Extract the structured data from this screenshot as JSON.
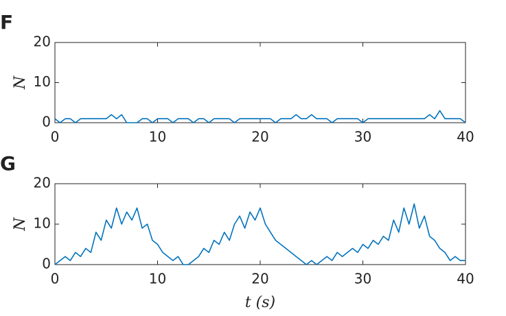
{
  "chart_data": [
    {
      "type": "line",
      "title": "F",
      "ylabel": "N",
      "color": "#0072bd",
      "xlim": [
        0,
        40
      ],
      "ylim": [
        0,
        20
      ],
      "xticks": [
        0,
        10,
        20,
        30,
        40
      ],
      "yticks": [
        0,
        10,
        20
      ],
      "x": [
        0,
        0.5,
        1,
        1.5,
        2,
        2.5,
        3,
        3.5,
        4,
        4.5,
        5,
        5.5,
        6,
        6.5,
        7,
        7.5,
        8,
        8.5,
        9,
        9.5,
        10,
        10.5,
        11,
        11.5,
        12,
        12.5,
        13,
        13.5,
        14,
        14.5,
        15,
        15.5,
        16,
        16.5,
        17,
        17.5,
        18,
        18.5,
        19,
        19.5,
        20,
        20.5,
        21,
        21.5,
        22,
        22.5,
        23,
        23.5,
        24,
        24.5,
        25,
        25.5,
        26,
        26.5,
        27,
        27.5,
        28,
        28.5,
        29,
        29.5,
        30,
        30.5,
        31,
        31.5,
        32,
        32.5,
        33,
        33.5,
        34,
        34.5,
        35,
        35.5,
        36,
        36.5,
        37,
        37.5,
        38,
        38.5,
        39,
        39.5,
        40
      ],
      "values": [
        1,
        0,
        1,
        1,
        0,
        1,
        1,
        1,
        1,
        1,
        1,
        2,
        1,
        2,
        0,
        0,
        0,
        1,
        1,
        0,
        1,
        1,
        1,
        0,
        1,
        1,
        1,
        0,
        1,
        1,
        0,
        1,
        1,
        1,
        1,
        0,
        1,
        1,
        1,
        1,
        1,
        1,
        1,
        0,
        1,
        1,
        1,
        2,
        1,
        1,
        2,
        1,
        1,
        1,
        0,
        1,
        1,
        1,
        1,
        1,
        0,
        1,
        1,
        1,
        1,
        1,
        1,
        1,
        1,
        1,
        1,
        1,
        1,
        2,
        1,
        3,
        1,
        1,
        1,
        1,
        0
      ]
    },
    {
      "type": "line",
      "title": "G",
      "ylabel": "N",
      "xlabel": "t (s)",
      "color": "#0072bd",
      "xlim": [
        0,
        40
      ],
      "ylim": [
        0,
        20
      ],
      "xticks": [
        0,
        10,
        20,
        30,
        40
      ],
      "yticks": [
        0,
        10,
        20
      ],
      "x": [
        0,
        0.5,
        1,
        1.5,
        2,
        2.5,
        3,
        3.5,
        4,
        4.5,
        5,
        5.5,
        6,
        6.5,
        7,
        7.5,
        8,
        8.5,
        9,
        9.5,
        10,
        10.5,
        11,
        11.5,
        12,
        12.5,
        13,
        13.5,
        14,
        14.5,
        15,
        15.5,
        16,
        16.5,
        17,
        17.5,
        18,
        18.5,
        19,
        19.5,
        20,
        20.5,
        21,
        21.5,
        22,
        22.5,
        23,
        23.5,
        24,
        24.5,
        25,
        25.5,
        26,
        26.5,
        27,
        27.5,
        28,
        28.5,
        29,
        29.5,
        30,
        30.5,
        31,
        31.5,
        32,
        32.5,
        33,
        33.5,
        34,
        34.5,
        35,
        35.5,
        36,
        36.5,
        37,
        37.5,
        38,
        38.5,
        39,
        39.5,
        40
      ],
      "values": [
        0,
        1,
        2,
        1,
        3,
        2,
        4,
        3,
        8,
        6,
        11,
        9,
        14,
        10,
        13,
        11,
        14,
        9,
        10,
        6,
        5,
        3,
        2,
        1,
        2,
        0,
        0,
        1,
        2,
        4,
        3,
        6,
        5,
        8,
        6,
        10,
        12,
        9,
        13,
        11,
        14,
        10,
        8,
        6,
        5,
        4,
        3,
        2,
        1,
        0,
        1,
        0,
        1,
        2,
        1,
        3,
        2,
        3,
        4,
        3,
        5,
        4,
        6,
        5,
        7,
        6,
        11,
        8,
        14,
        10,
        15,
        9,
        12,
        7,
        6,
        4,
        3,
        1,
        2,
        1,
        1
      ]
    }
  ]
}
